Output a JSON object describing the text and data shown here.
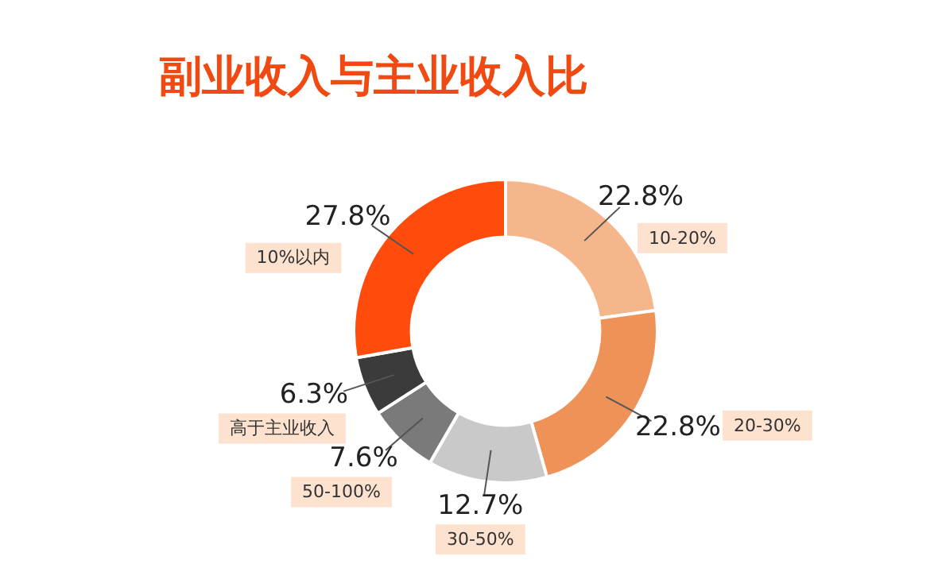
{
  "chart_data": {
    "type": "donut",
    "title": "副业收入与主业收入比",
    "categories": [
      "10-20%",
      "20-30%",
      "30-50%",
      "50-100%",
      "高于主业收入",
      "10%以内"
    ],
    "values": [
      22.8,
      22.8,
      12.7,
      7.6,
      6.3,
      27.8
    ],
    "value_labels": [
      "22.8%",
      "22.8%",
      "12.7%",
      "7.6%",
      "6.3%",
      "27.8%"
    ],
    "colors": [
      "#f6b68c",
      "#ef9258",
      "#c9c9c9",
      "#7a7a7a",
      "#3b3b3b",
      "#ff4b0c"
    ],
    "legend": false
  }
}
